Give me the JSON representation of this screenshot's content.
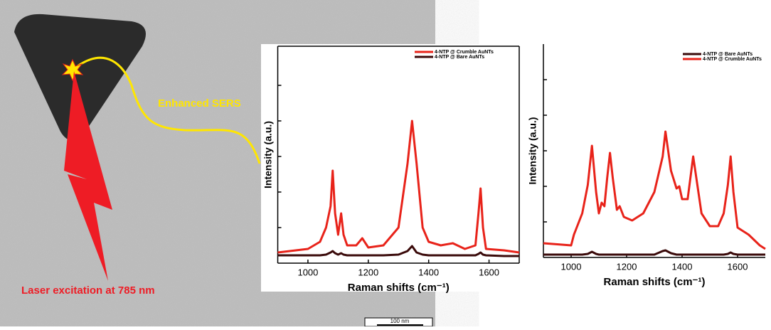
{
  "chart_data": [
    {
      "type": "line",
      "xlabel": "Raman shifts (cm⁻¹)",
      "ylabel": "Intensity (a.u.)",
      "x": [
        900,
        1000,
        1040,
        1060,
        1075,
        1082,
        1090,
        1100,
        1110,
        1118,
        1130,
        1160,
        1180,
        1200,
        1250,
        1300,
        1330,
        1345,
        1360,
        1380,
        1400,
        1440,
        1480,
        1520,
        1555,
        1565,
        1572,
        1580,
        1590,
        1650,
        1700
      ],
      "series": [
        {
          "name": "4-NTP @ Crumble AuNTs",
          "color": "#e8231a",
          "values": [
            0.3,
            0.4,
            0.6,
            1.0,
            1.6,
            2.6,
            1.4,
            0.8,
            1.4,
            0.8,
            0.5,
            0.5,
            0.7,
            0.44,
            0.5,
            1.0,
            2.8,
            4.0,
            2.8,
            1.0,
            0.6,
            0.5,
            0.56,
            0.4,
            0.5,
            1.4,
            2.1,
            1.0,
            0.4,
            0.36,
            0.3
          ]
        },
        {
          "name": "4-NTP @ Bare AuNTs",
          "color": "#3a0a0a",
          "values": [
            0.22,
            0.22,
            0.22,
            0.24,
            0.3,
            0.34,
            0.28,
            0.24,
            0.28,
            0.24,
            0.22,
            0.22,
            0.22,
            0.22,
            0.22,
            0.24,
            0.34,
            0.48,
            0.3,
            0.24,
            0.22,
            0.22,
            0.22,
            0.22,
            0.22,
            0.26,
            0.3,
            0.24,
            0.22,
            0.2,
            0.2
          ]
        }
      ],
      "xlim": [
        900,
        1700
      ],
      "xticks": [
        1000,
        1200,
        1400,
        1600
      ],
      "ylim": [
        0,
        6.1
      ],
      "yticks": [
        1,
        2,
        3,
        4,
        5
      ]
    },
    {
      "type": "line",
      "xlabel": "Raman shifts (cm⁻¹)",
      "ylabel": "Intensity (a.u.)",
      "x": [
        900,
        1000,
        1010,
        1040,
        1060,
        1075,
        1090,
        1100,
        1110,
        1120,
        1130,
        1140,
        1150,
        1165,
        1175,
        1190,
        1220,
        1260,
        1300,
        1330,
        1340,
        1360,
        1380,
        1390,
        1400,
        1420,
        1440,
        1455,
        1470,
        1500,
        1530,
        1550,
        1565,
        1575,
        1585,
        1600,
        1640,
        1680,
        1700
      ],
      "series": [
        {
          "name": "4-NTP @ Bare AuNTs",
          "color": "#3a0a0a",
          "values": [
            0.08,
            0.08,
            0.08,
            0.08,
            0.1,
            0.16,
            0.1,
            0.08,
            0.08,
            0.08,
            0.08,
            0.08,
            0.08,
            0.08,
            0.08,
            0.08,
            0.08,
            0.08,
            0.08,
            0.18,
            0.2,
            0.12,
            0.08,
            0.08,
            0.08,
            0.08,
            0.08,
            0.08,
            0.08,
            0.08,
            0.08,
            0.08,
            0.1,
            0.14,
            0.1,
            0.08,
            0.08,
            0.08,
            0.08
          ]
        },
        {
          "name": "4-NTP @ Crumble AuNTs",
          "color": "#e8231a",
          "values": [
            0.4,
            0.34,
            0.64,
            1.24,
            2.04,
            3.14,
            1.84,
            1.24,
            1.54,
            1.44,
            2.24,
            2.94,
            2.24,
            1.34,
            1.44,
            1.14,
            1.04,
            1.24,
            1.84,
            2.84,
            3.54,
            2.44,
            1.94,
            2.0,
            1.64,
            1.64,
            2.84,
            2.04,
            1.24,
            0.88,
            0.88,
            1.24,
            2.04,
            2.84,
            1.84,
            0.84,
            0.64,
            0.34,
            0.24
          ]
        }
      ],
      "xlim": [
        900,
        1700
      ],
      "xticks": [
        1000,
        1200,
        1400,
        1600
      ],
      "ylim": [
        0,
        6
      ],
      "yticks": [
        1,
        2,
        3,
        4,
        5
      ]
    }
  ],
  "annotations": {
    "sers": "Enhanced SERS",
    "laser": "Laser excitation at 785 nm",
    "scale_bar": "100 nm"
  }
}
